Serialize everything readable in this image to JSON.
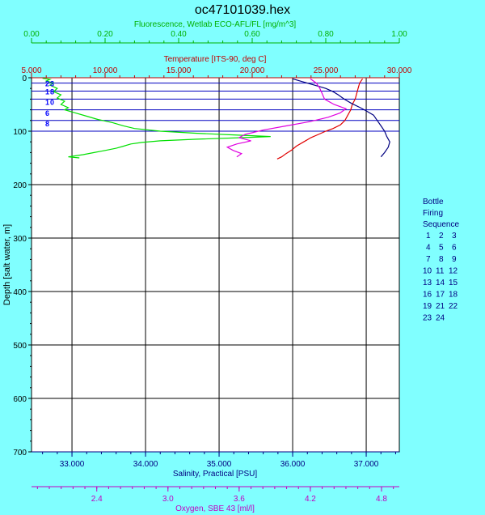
{
  "chart_data": {
    "type": "line",
    "title": "oc47101039.hex",
    "colors": {
      "background": "#80ffff",
      "plot_bg": "#ffffff",
      "fluorescence": "#00e000",
      "temperature": "#e00000",
      "salinity": "#000080",
      "oxygen": "#e000e0",
      "bottle": "#0000ff",
      "grid": "#000000"
    },
    "grid": true,
    "depth_axis": {
      "label": "Depth [salt water, m]",
      "range": [
        0,
        700
      ],
      "ticks": [
        0,
        100,
        200,
        300,
        400,
        500,
        600,
        700
      ],
      "reversed": true
    },
    "axes": {
      "fluorescence": {
        "label": "Fluorescence, Wetlab ECO-AFL/FL [mg/m^3]",
        "range": [
          0,
          1
        ],
        "ticks": [
          "0.00",
          "0.20",
          "0.40",
          "0.60",
          "0.80",
          "1.00"
        ],
        "position": "top"
      },
      "temperature": {
        "label": "Temperature [ITS-90, deg C]",
        "range": [
          5,
          30
        ],
        "ticks": [
          "5.000",
          "10.000",
          "15.000",
          "20.000",
          "25.000",
          "30.000"
        ],
        "position": "top"
      },
      "salinity": {
        "label": "Salinity, Practical [PSU]",
        "range": [
          32.45,
          37.45
        ],
        "ticks": [
          "33.000",
          "34.000",
          "35.000",
          "36.000",
          "37.000"
        ],
        "position": "bottom"
      },
      "oxygen": {
        "label": "Oxygen, SBE 43 [ml/l]",
        "range": [
          1.85,
          4.95
        ],
        "ticks": [
          "2.4",
          "3.0",
          "3.6",
          "4.2",
          "4.8"
        ],
        "position": "bottom"
      }
    },
    "series": [
      {
        "key": "fluorescence",
        "points": [
          [
            0.03,
            1
          ],
          [
            0.05,
            3
          ],
          [
            0.04,
            6
          ],
          [
            0.06,
            10
          ],
          [
            0.05,
            14
          ],
          [
            0.07,
            20
          ],
          [
            0.06,
            26
          ],
          [
            0.08,
            32
          ],
          [
            0.07,
            38
          ],
          [
            0.09,
            44
          ],
          [
            0.08,
            50
          ],
          [
            0.1,
            56
          ],
          [
            0.09,
            60
          ],
          [
            0.12,
            66
          ],
          [
            0.15,
            72
          ],
          [
            0.18,
            78
          ],
          [
            0.22,
            84
          ],
          [
            0.25,
            90
          ],
          [
            0.28,
            95
          ],
          [
            0.35,
            100
          ],
          [
            0.45,
            104
          ],
          [
            0.55,
            107
          ],
          [
            0.65,
            110
          ],
          [
            0.58,
            112
          ],
          [
            0.45,
            115
          ],
          [
            0.35,
            118
          ],
          [
            0.3,
            121
          ],
          [
            0.27,
            124
          ],
          [
            0.25,
            128
          ],
          [
            0.23,
            132
          ],
          [
            0.2,
            136
          ],
          [
            0.17,
            140
          ],
          [
            0.14,
            144
          ],
          [
            0.1,
            148
          ],
          [
            0.13,
            150
          ]
        ]
      },
      {
        "key": "temperature",
        "points": [
          [
            27.5,
            2
          ],
          [
            27.3,
            10
          ],
          [
            27.2,
            20
          ],
          [
            27.1,
            30
          ],
          [
            27.0,
            40
          ],
          [
            26.8,
            50
          ],
          [
            26.7,
            60
          ],
          [
            26.5,
            70
          ],
          [
            26.3,
            80
          ],
          [
            26.0,
            88
          ],
          [
            25.5,
            95
          ],
          [
            25.0,
            100
          ],
          [
            24.5,
            106
          ],
          [
            24.0,
            112
          ],
          [
            23.5,
            120
          ],
          [
            23.0,
            128
          ],
          [
            22.7,
            135
          ],
          [
            22.3,
            142
          ],
          [
            22.0,
            148
          ],
          [
            21.7,
            152
          ]
        ]
      },
      {
        "key": "salinity",
        "points": [
          [
            36.0,
            2
          ],
          [
            36.15,
            8
          ],
          [
            36.3,
            14
          ],
          [
            36.45,
            20
          ],
          [
            36.55,
            26
          ],
          [
            36.62,
            32
          ],
          [
            36.7,
            40
          ],
          [
            36.8,
            48
          ],
          [
            36.92,
            56
          ],
          [
            37.0,
            62
          ],
          [
            37.1,
            70
          ],
          [
            37.15,
            80
          ],
          [
            37.2,
            90
          ],
          [
            37.25,
            100
          ],
          [
            37.28,
            110
          ],
          [
            37.32,
            120
          ],
          [
            37.3,
            130
          ],
          [
            37.25,
            140
          ],
          [
            37.2,
            148
          ]
        ]
      },
      {
        "key": "oxygen",
        "points": [
          [
            4.2,
            2
          ],
          [
            4.25,
            10
          ],
          [
            4.28,
            20
          ],
          [
            4.3,
            30
          ],
          [
            4.32,
            40
          ],
          [
            4.4,
            50
          ],
          [
            4.5,
            58
          ],
          [
            4.45,
            66
          ],
          [
            4.35,
            74
          ],
          [
            4.2,
            82
          ],
          [
            4.0,
            90
          ],
          [
            3.8,
            98
          ],
          [
            3.65,
            106
          ],
          [
            3.6,
            112
          ],
          [
            3.7,
            118
          ],
          [
            3.58,
            124
          ],
          [
            3.5,
            130
          ],
          [
            3.55,
            136
          ],
          [
            3.62,
            142
          ],
          [
            3.58,
            148
          ]
        ]
      }
    ],
    "bottles": [
      {
        "depth": 10,
        "labels": [
          "2",
          "3"
        ]
      },
      {
        "depth": 25,
        "labels": [
          "1",
          "8"
        ]
      },
      {
        "depth": 45,
        "labels": [
          "1",
          "0"
        ]
      },
      {
        "depth": 65,
        "labels": [
          "6"
        ]
      },
      {
        "depth": 85,
        "labels": [
          "8"
        ]
      }
    ],
    "bottle_lines": [
      10,
      25,
      40,
      60,
      80,
      100
    ],
    "legend": {
      "title_lines": [
        "Bottle",
        "Firing",
        "Sequence"
      ],
      "rows": [
        [
          "1",
          "2",
          "3"
        ],
        [
          "4",
          "5",
          "6"
        ],
        [
          "7",
          "8",
          "9"
        ],
        [
          "10",
          "11",
          "12"
        ],
        [
          "13",
          "14",
          "15"
        ],
        [
          "16",
          "17",
          "18"
        ],
        [
          "19",
          "21",
          "22"
        ],
        [
          "23",
          "24"
        ]
      ],
      "position": "right"
    }
  }
}
